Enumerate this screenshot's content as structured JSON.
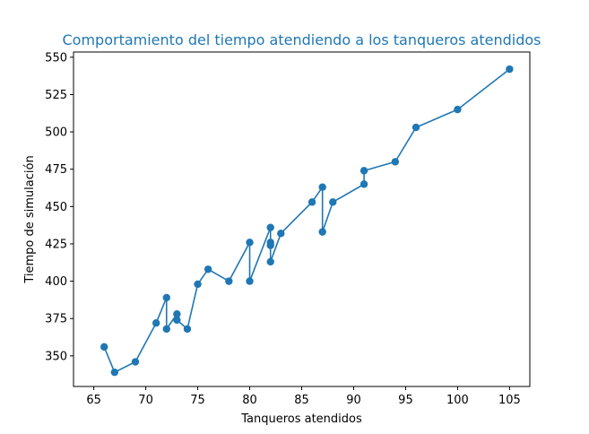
{
  "chart_data": {
    "type": "line",
    "title": "Comportamiento del tiempo atendiendo a los tanqueros atendidos",
    "xlabel": "Tanqueros atendidos",
    "ylabel": "Tiempo de simulación",
    "xlim": [
      63.05,
      106.95
    ],
    "ylim": [
      329.5,
      553.5
    ],
    "xticks": [
      65,
      70,
      75,
      80,
      85,
      90,
      95,
      100,
      105
    ],
    "yticks": [
      350,
      375,
      400,
      425,
      450,
      475,
      500,
      525,
      550
    ],
    "grid": false,
    "markers": true,
    "colors": {
      "series": "#1f77b4",
      "title": "#1f77b4",
      "axis": "#000000"
    },
    "series": [
      {
        "x": [
          66,
          67,
          69,
          71,
          72,
          72,
          73,
          73,
          74,
          75,
          76,
          78,
          80,
          80,
          82,
          82,
          82,
          82,
          83,
          86,
          87,
          87,
          88,
          91,
          91,
          94,
          96,
          100,
          105
        ],
        "y": [
          356,
          339,
          346,
          372,
          389,
          368,
          378,
          374,
          368,
          398,
          408,
          400,
          426,
          400,
          436,
          426,
          424,
          413,
          432,
          453,
          463,
          433,
          453,
          465,
          474,
          480,
          503,
          515,
          542
        ]
      }
    ]
  }
}
